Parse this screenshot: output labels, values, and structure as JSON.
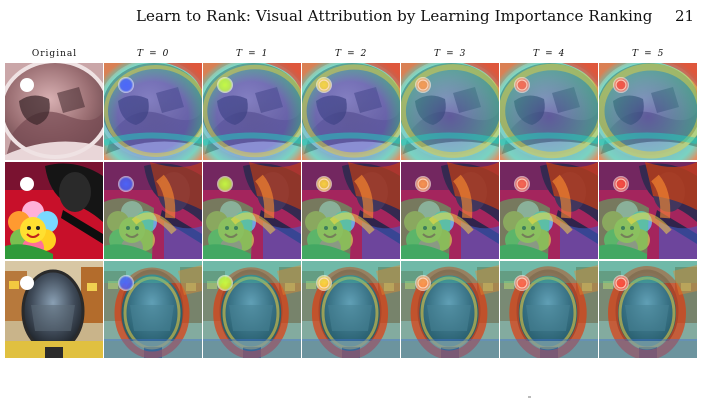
{
  "running_head": {
    "title": "Learn to Rank: Visual Attribution by Learning Importance Ranking",
    "page_number": "21"
  },
  "figure": {
    "columns": [
      {
        "label": "Original",
        "kind": "original"
      },
      {
        "label": "T = 0",
        "kind": "heatmap",
        "step": 0
      },
      {
        "label": "T = 1",
        "kind": "heatmap",
        "step": 1
      },
      {
        "label": "T = 2",
        "kind": "heatmap",
        "step": 2
      },
      {
        "label": "T = 3",
        "kind": "heatmap",
        "step": 3
      },
      {
        "label": "T = 4",
        "kind": "heatmap",
        "step": 4
      },
      {
        "label": "T = 5",
        "kind": "heatmap",
        "step": 5
      }
    ],
    "rows": [
      {
        "scene": "car-side-mirror"
      },
      {
        "scene": "flower-plush-sunglasses"
      },
      {
        "scene": "convex-street-mirror"
      }
    ],
    "marker_colors": [
      "#4a66ff",
      "#c8ff40",
      "#ffd840",
      "#ff9a50",
      "#ff6a50",
      "#ff5040"
    ]
  }
}
